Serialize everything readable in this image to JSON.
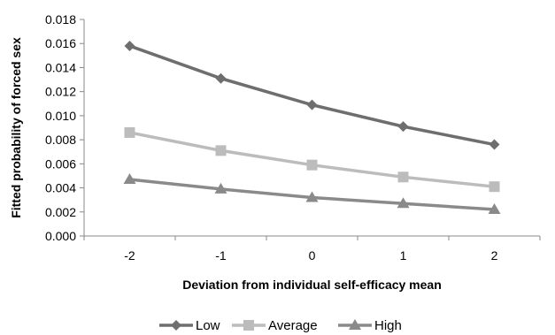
{
  "chart_data": {
    "type": "line",
    "x": [
      -2,
      -1,
      0,
      1,
      2
    ],
    "x_tick_labels": [
      "-2",
      "-1",
      "0",
      "1",
      "2"
    ],
    "y_tick_labels": [
      "0.000",
      "0.002",
      "0.004",
      "0.006",
      "0.008",
      "0.010",
      "0.012",
      "0.014",
      "0.016",
      "0.018"
    ],
    "ylim": [
      0,
      0.018
    ],
    "xlabel": "Deviation from individual self-efficacy mean",
    "ylabel": "Fitted probability of forced sex",
    "grid": false,
    "legend_position": "bottom",
    "series": [
      {
        "name": "Low",
        "marker": "diamond",
        "color": "#6e6e6e",
        "values": [
          0.0158,
          0.0131,
          0.0109,
          0.0091,
          0.0076
        ]
      },
      {
        "name": "Average",
        "marker": "square",
        "color": "#bcbcbc",
        "values": [
          0.0086,
          0.0071,
          0.0059,
          0.0049,
          0.0041
        ]
      },
      {
        "name": "High",
        "marker": "triangle",
        "color": "#8a8a8a",
        "values": [
          0.0047,
          0.0039,
          0.0032,
          0.0027,
          0.0022
        ]
      }
    ]
  }
}
